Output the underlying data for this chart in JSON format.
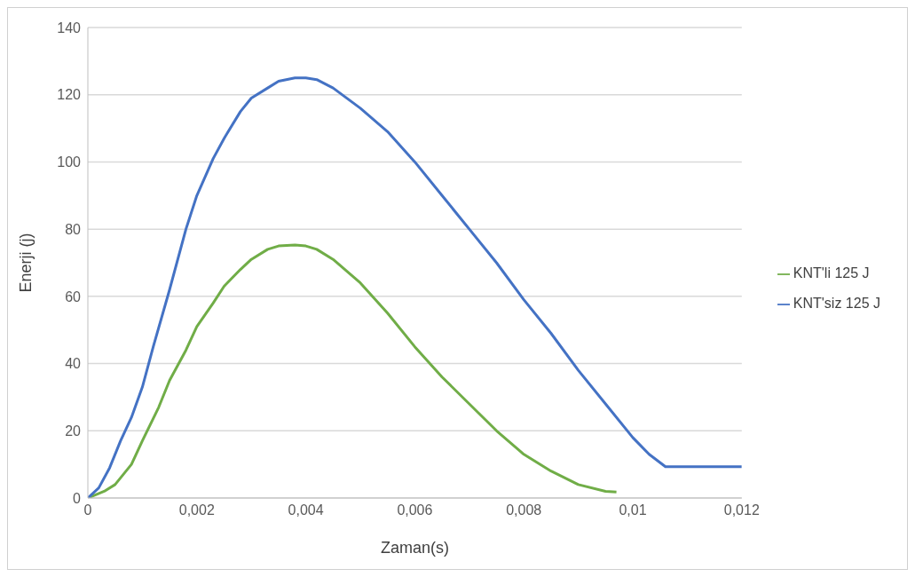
{
  "chart_data": {
    "type": "line",
    "xlabel": "Zaman(s)",
    "ylabel": "Enerji (j)",
    "xlim": [
      0,
      0.012
    ],
    "ylim": [
      0,
      140
    ],
    "xticks": [
      0,
      {
        "value": 0.002,
        "label": "0,002"
      },
      {
        "value": 0.004,
        "label": "0,004"
      },
      {
        "value": 0.006,
        "label": "0,006"
      },
      {
        "value": 0.008,
        "label": "0,008"
      },
      {
        "value": 0.01,
        "label": "0,01"
      },
      {
        "value": 0.012,
        "label": "0,012"
      }
    ],
    "yticks": [
      0,
      20,
      40,
      60,
      80,
      100,
      120,
      140
    ],
    "grid": "y",
    "legend": "right",
    "marker": "none",
    "line_style": "solid",
    "series": [
      {
        "name": "KNT'li 125 J",
        "color": "#70ad47",
        "x": [
          0,
          0.0003,
          0.0005,
          0.0008,
          0.001,
          0.0013,
          0.0015,
          0.0018,
          0.002,
          0.0023,
          0.0025,
          0.0028,
          0.003,
          0.0033,
          0.0035,
          0.0038,
          0.004,
          0.0042,
          0.0045,
          0.005,
          0.0055,
          0.006,
          0.0065,
          0.007,
          0.0075,
          0.008,
          0.0085,
          0.009,
          0.0095,
          0.0097
        ],
        "values": [
          0,
          2,
          4,
          10,
          17,
          27,
          35,
          44,
          51,
          58,
          63,
          68,
          71,
          74,
          75,
          75.3,
          75,
          74,
          71,
          64,
          55,
          45,
          36,
          28,
          20,
          13,
          8,
          4,
          2,
          1.8
        ]
      },
      {
        "name": "KNT'siz 125 J",
        "color": "#4472c4",
        "x": [
          0,
          0.0002,
          0.0004,
          0.0006,
          0.0008,
          0.001,
          0.0012,
          0.0015,
          0.0018,
          0.002,
          0.0023,
          0.0025,
          0.0028,
          0.003,
          0.0033,
          0.0035,
          0.0038,
          0.004,
          0.0042,
          0.0045,
          0.005,
          0.0055,
          0.006,
          0.0065,
          0.007,
          0.0075,
          0.008,
          0.0085,
          0.009,
          0.0095,
          0.01,
          0.0103,
          0.0106,
          0.011,
          0.012
        ],
        "values": [
          0,
          3,
          9,
          17,
          24,
          33,
          45,
          62,
          80,
          90,
          101,
          107,
          115,
          119,
          122,
          124,
          125,
          125,
          124.5,
          122,
          116,
          109,
          100,
          90,
          80,
          70,
          59,
          49,
          38,
          28,
          18,
          13,
          9.3,
          9.3,
          9.3
        ]
      }
    ]
  }
}
